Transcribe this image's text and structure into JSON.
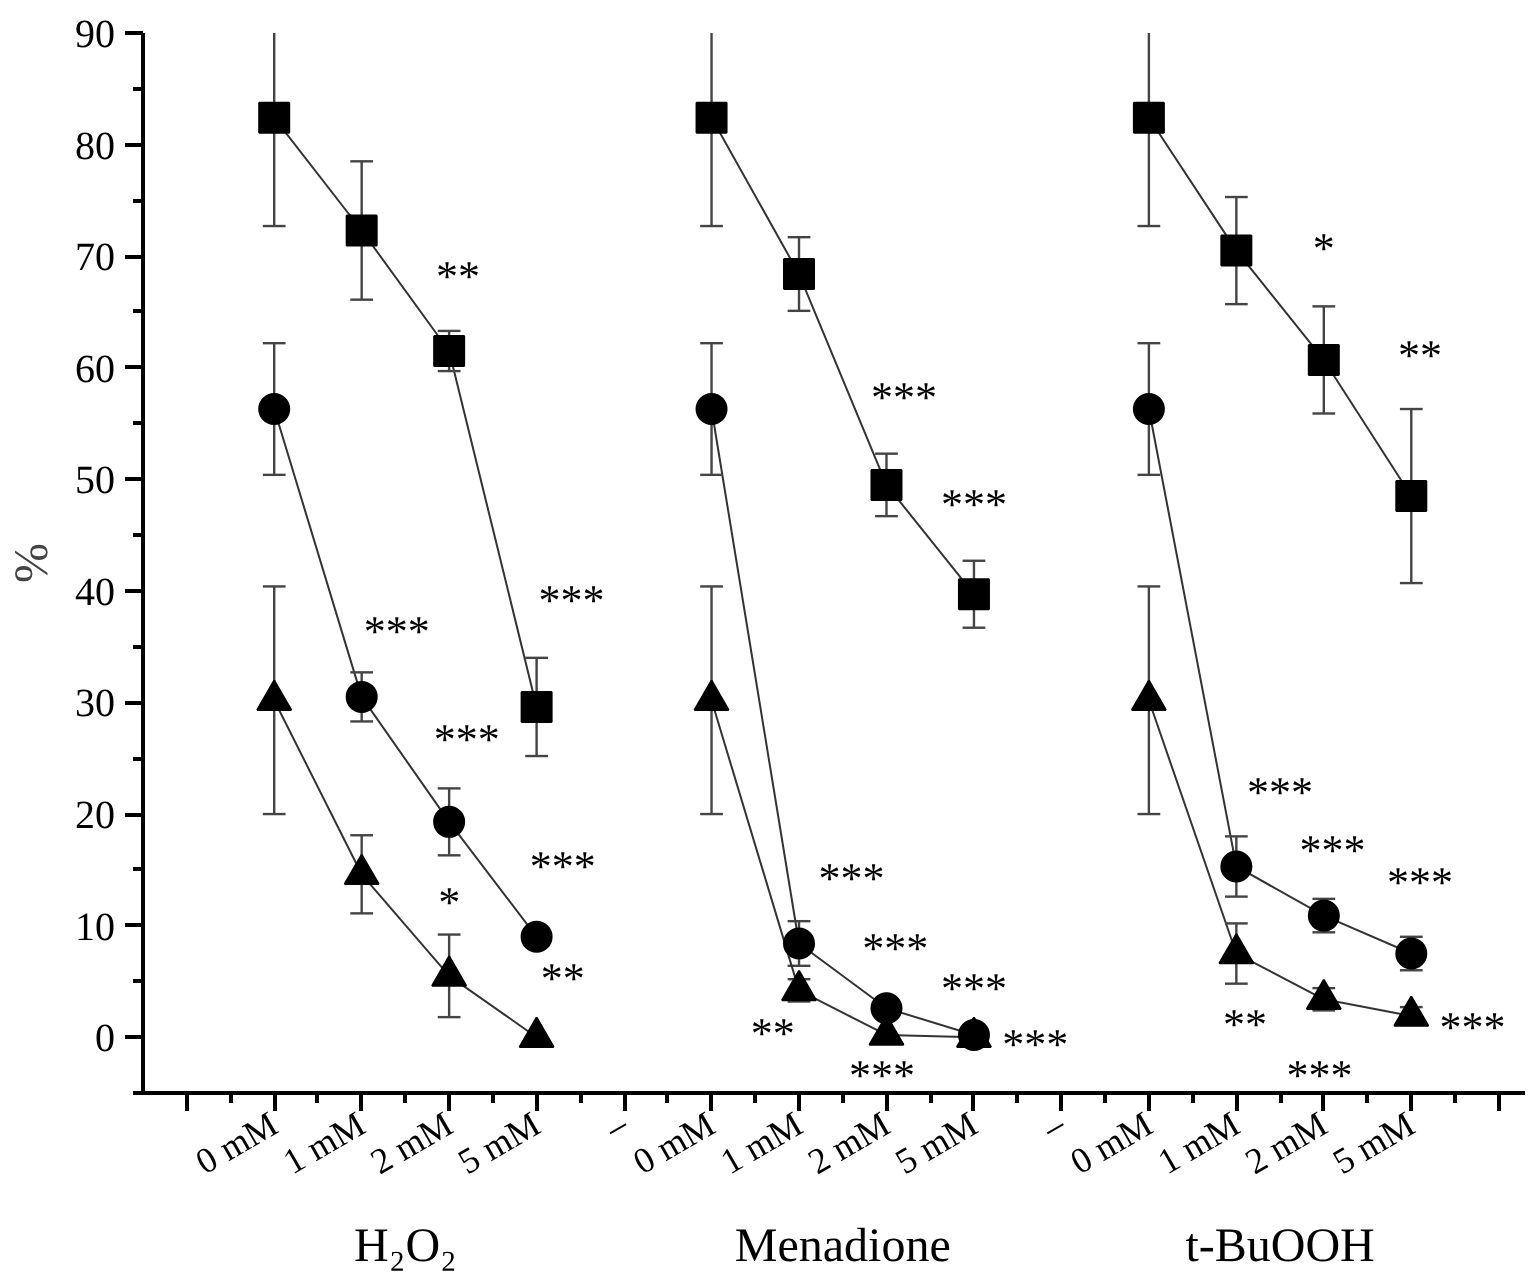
{
  "chart_data": {
    "type": "line",
    "ylabel": "%",
    "categories": [
      null,
      "0 mM",
      "1 mM",
      "2 mM",
      "5 mM",
      "–",
      "0 mM",
      "1 mM",
      "2 mM",
      "5 mM",
      "–",
      "0 mM",
      "1 mM",
      "2 mM",
      "5 mM",
      null
    ],
    "ylim": [
      -5,
      90
    ],
    "yticks": [
      0,
      10,
      20,
      30,
      40,
      50,
      60,
      70,
      80,
      90
    ],
    "grid": false,
    "line_style": "solid",
    "series": [
      {
        "color": "#000000",
        "marker": "square",
        "values": [
          null,
          82.4,
          72.3,
          61.5,
          29.6,
          null,
          82.4,
          68.4,
          49.5,
          39.7,
          null,
          82.4,
          70.5,
          60.7,
          48.5,
          null
        ],
        "errors": [
          null,
          9.7,
          6.2,
          1.8,
          4.4,
          null,
          9.7,
          3.3,
          2.8,
          3.0,
          null,
          9.7,
          4.8,
          4.8,
          7.8,
          null
        ]
      },
      {
        "color": "#000000",
        "marker": "circle",
        "values": [
          null,
          56.3,
          30.5,
          19.3,
          9.0,
          null,
          56.3,
          8.4,
          2.6,
          0.2,
          null,
          56.3,
          15.3,
          10.9,
          7.5,
          null
        ],
        "errors": [
          null,
          5.9,
          2.2,
          3.0,
          0.8,
          null,
          5.9,
          2.0,
          0.8,
          0.5,
          null,
          5.9,
          2.7,
          1.5,
          1.5,
          null
        ]
      },
      {
        "color": "#000000",
        "marker": "triangle",
        "values": [
          null,
          30.2,
          14.6,
          5.5,
          0.0,
          null,
          30.2,
          4.2,
          0.2,
          0.0,
          null,
          30.2,
          7.5,
          3.4,
          1.9,
          null
        ],
        "errors": [
          null,
          10.2,
          3.5,
          3.7,
          null,
          null,
          10.2,
          1.0,
          null,
          null,
          null,
          10.2,
          2.7,
          1.0,
          0.8,
          null
        ]
      }
    ],
    "annotations": [
      "**",
      "***",
      "***",
      "***",
      "***",
      "*",
      "**",
      "***",
      "***",
      "***",
      "***",
      "***",
      "**",
      "***",
      "***",
      "*",
      "**",
      "***",
      "***",
      "***",
      "**",
      "***",
      "***",
      "H₂O₂",
      "Menadione",
      "t-BuOOH"
    ]
  }
}
